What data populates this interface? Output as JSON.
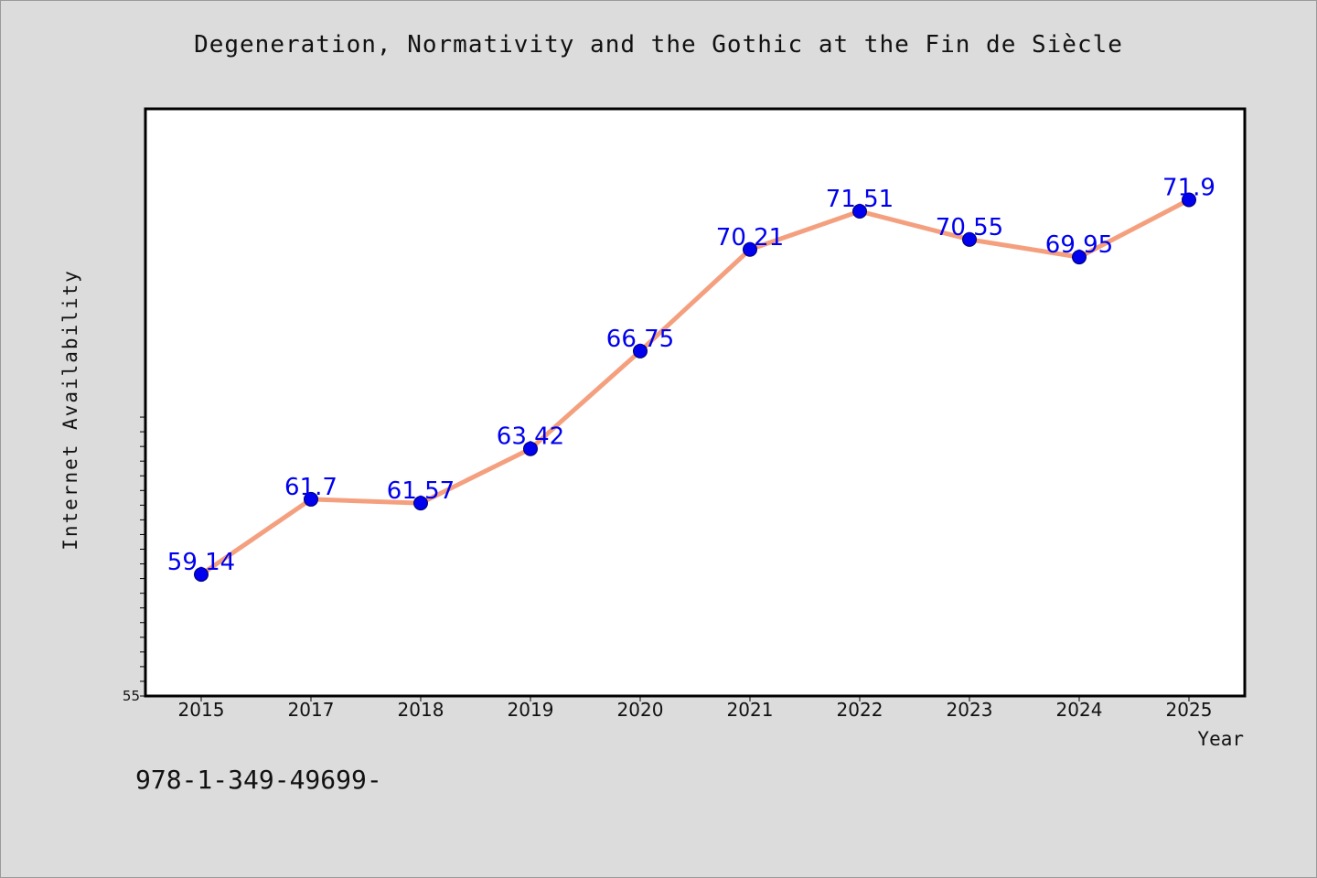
{
  "title": "Degeneration, Normativity and the Gothic at the Fin de Siècle",
  "footer_code": "978-1-349-49699-",
  "colors": {
    "background": "#dcdcdc",
    "plot_area": "#ffffff",
    "line": "#f4a07f",
    "marker": "#0000ee",
    "data_label": "#0000ee"
  },
  "chart_data": {
    "type": "line",
    "title": "Degeneration, Normativity and the Gothic at the Fin de Siècle",
    "xlabel": "Year",
    "ylabel": "Internet Availability",
    "categories": [
      "2015",
      "2017",
      "2018",
      "2019",
      "2020",
      "2021",
      "2022",
      "2023",
      "2024",
      "2025"
    ],
    "values": [
      59.14,
      61.7,
      61.57,
      63.42,
      66.75,
      70.21,
      71.51,
      70.55,
      69.95,
      71.9
    ],
    "data_labels": [
      "59.14",
      "61.7",
      "61.57",
      "63.42",
      "66.75",
      "70.21",
      "71.51",
      "70.55",
      "69.95",
      "71.9"
    ],
    "ylim": [
      55,
      75
    ],
    "y_tick_labels_shown": [
      "55"
    ],
    "grid": false,
    "legend": "none"
  }
}
